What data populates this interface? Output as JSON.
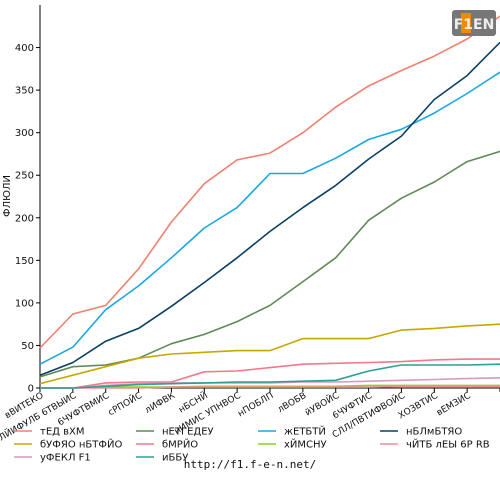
{
  "chart_data": {
    "type": "line",
    "title": "",
    "xlabel": "",
    "ylabel": "ФЛЮЛИ",
    "ylim": [
      0,
      450
    ],
    "yticks": [
      0,
      50,
      100,
      150,
      200,
      250,
      300,
      350,
      400
    ],
    "grid": false,
    "legend_position": "bottom",
    "categories": [
      "вВИТЕКО",
      "вУЛЙИФУЛБ 6ТВЫИС",
      "6ЧУФТВМИС",
      "сРПОЙС",
      "лИФВК",
      "нБСНЙ",
      "нИМИС УПНВОС",
      "нПОБЛП",
      "лВОБВ",
      "йУВОЙС",
      "6ЧУФТИС",
      "СЛЛ/ПВТИФВОЙС",
      "ХОЗВТИС",
      "вЕМЗИС",
      ""
    ],
    "series": [
      {
        "name": "тЕД вХМ",
        "color": "#f08070",
        "values": [
          47,
          87,
          97,
          140,
          195,
          240,
          268,
          276,
          300,
          330,
          355,
          373,
          390,
          410,
          437
        ]
      },
      {
        "name": "нЕТГЕДЕУ",
        "color": "#5f8a58",
        "values": [
          13,
          25,
          27,
          35,
          52,
          63,
          78,
          97,
          125,
          153,
          197,
          223,
          242,
          266,
          278
        ]
      },
      {
        "name": "жЕТБТЙ",
        "color": "#1ba8e0",
        "values": [
          28,
          48,
          92,
          120,
          153,
          188,
          212,
          252,
          252,
          270,
          292,
          304,
          323,
          346,
          371
        ]
      },
      {
        "name": "нБЛмБТЯО",
        "color": "#0b3f63",
        "values": [
          15,
          30,
          55,
          70,
          96,
          124,
          153,
          184,
          212,
          238,
          269,
          296,
          339,
          367,
          406
        ]
      },
      {
        "name": "бУФЯО нБТФЙО",
        "color": "#c8a800",
        "values": [
          5,
          15,
          25,
          35,
          40,
          42,
          44,
          44,
          58,
          58,
          58,
          68,
          70,
          73,
          75
        ]
      },
      {
        "name": "бМРЙО",
        "color": "#f07a8a",
        "values": [
          0,
          0,
          6,
          7,
          7,
          19,
          20,
          24,
          28,
          29,
          30,
          31,
          33,
          34,
          34
        ]
      },
      {
        "name": "хЙМСНУ",
        "color": "#8cd41e",
        "values": [
          0,
          0,
          1,
          1,
          1,
          2,
          2,
          2,
          2,
          2,
          3,
          3,
          3,
          3,
          3
        ]
      },
      {
        "name": "чЙТБ лЕЫ 6Р RВ",
        "color": "#e89090",
        "values": [
          0,
          0,
          0,
          0,
          1,
          1,
          1,
          1,
          1,
          1,
          1,
          2,
          2,
          2,
          2
        ]
      },
      {
        "name": "уФЕКЛ F1",
        "color": "#d49ac0",
        "values": [
          0,
          0,
          3,
          5,
          6,
          6,
          6,
          6,
          7,
          7,
          8,
          9,
          10,
          11,
          12
        ]
      },
      {
        "name": "иББУ",
        "color": "#2f9e96",
        "values": [
          0,
          0,
          2,
          4,
          5,
          6,
          7,
          7,
          8,
          9,
          20,
          27,
          27,
          27,
          28
        ]
      }
    ]
  },
  "footer": {
    "url": "http://f1.f-e-n.net/"
  },
  "logo": {
    "text": "F1EN"
  }
}
